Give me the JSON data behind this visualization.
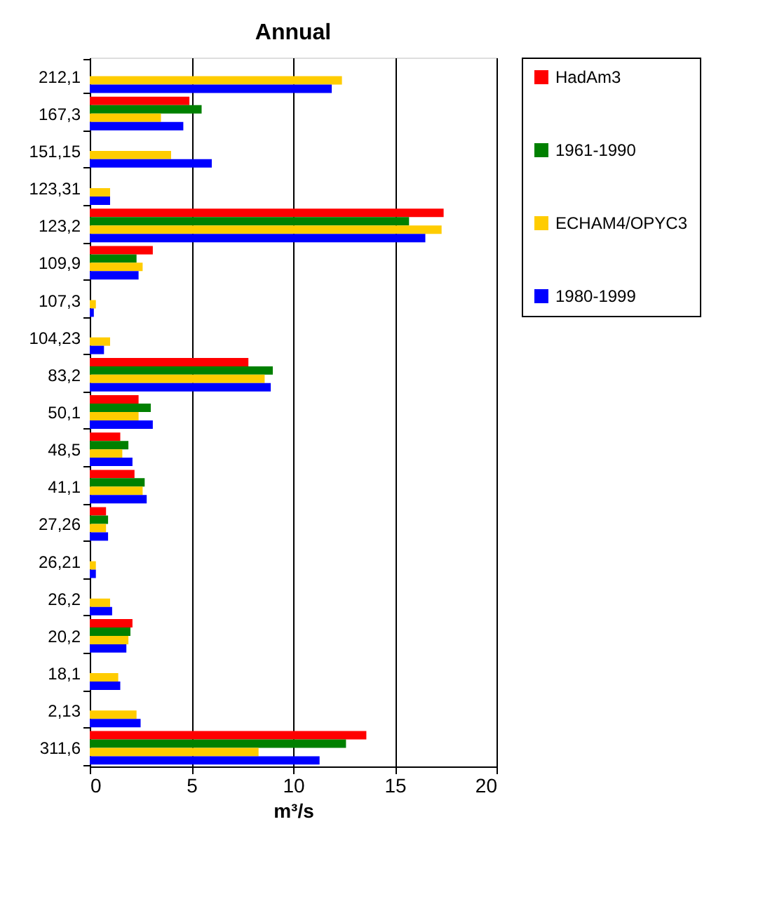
{
  "chart_data": {
    "type": "bar",
    "orientation": "horizontal",
    "title": "Annual",
    "xlabel": "m³/s",
    "categories": [
      "212,1",
      "167,3",
      "151,15",
      "123,31",
      "123,2",
      "109,9",
      "107,3",
      "104,23",
      "83,2",
      "50,1",
      "48,5",
      "41,1",
      "27,26",
      "26,21",
      "26,2",
      "20,2",
      "18,1",
      "2,13",
      "311,6"
    ],
    "series": [
      {
        "name": "HadAm3",
        "color": "#ff0000",
        "values": [
          null,
          4.9,
          null,
          null,
          17.4,
          3.1,
          null,
          null,
          7.8,
          2.4,
          1.5,
          2.2,
          0.8,
          null,
          null,
          2.1,
          null,
          null,
          13.6
        ]
      },
      {
        "name": "1961-1990",
        "color": "#008000",
        "values": [
          null,
          5.5,
          null,
          null,
          15.7,
          2.3,
          null,
          null,
          9.0,
          3.0,
          1.9,
          2.7,
          0.9,
          null,
          null,
          2.0,
          null,
          null,
          12.6
        ]
      },
      {
        "name": "ECHAM4/OPYC3",
        "color": "#ffcc00",
        "values": [
          12.4,
          3.5,
          4.0,
          1.0,
          17.3,
          2.6,
          0.3,
          1.0,
          8.6,
          2.4,
          1.6,
          2.6,
          0.8,
          0.3,
          1.0,
          1.9,
          1.4,
          2.3,
          8.3
        ]
      },
      {
        "name": "1980-1999",
        "color": "#0000ff",
        "values": [
          11.9,
          4.6,
          6.0,
          1.0,
          16.5,
          2.4,
          0.2,
          0.7,
          8.9,
          3.1,
          2.1,
          2.8,
          0.9,
          0.3,
          1.1,
          1.8,
          1.5,
          2.5,
          11.3
        ]
      }
    ],
    "xlim": [
      0,
      20
    ],
    "xticks": [
      0,
      5,
      10,
      15,
      20
    ],
    "grid": "x",
    "legend": "right"
  }
}
